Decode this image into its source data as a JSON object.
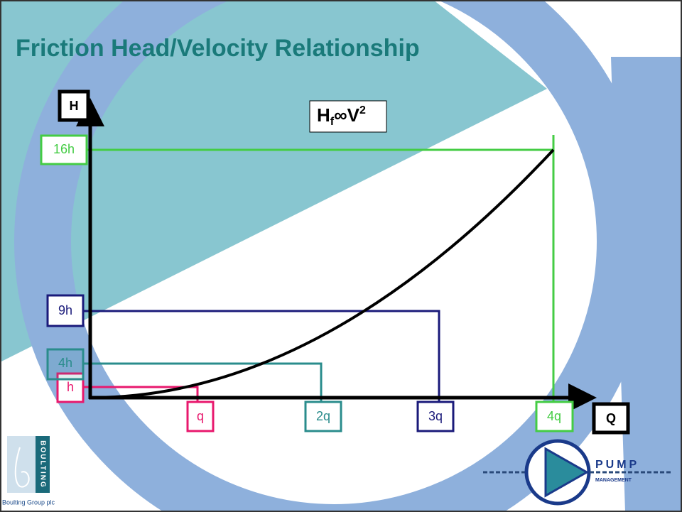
{
  "title": "Friction Head/Velocity Relationship",
  "formula": {
    "main": "H",
    "subscript": "f",
    "middle": "∞V",
    "superscript": "2"
  },
  "axes": {
    "y": "H",
    "x": "Q"
  },
  "levels": [
    {
      "head": "h",
      "flow": "q"
    },
    {
      "head": "4h",
      "flow": "2q"
    },
    {
      "head": "9h",
      "flow": "3q"
    },
    {
      "head": "16h",
      "flow": "4q"
    }
  ],
  "logos": {
    "left": "BOULTING",
    "left_caption": "Boulting Group plc",
    "right_top": "PUMP",
    "right_bottom": "MANAGEMENT"
  }
}
